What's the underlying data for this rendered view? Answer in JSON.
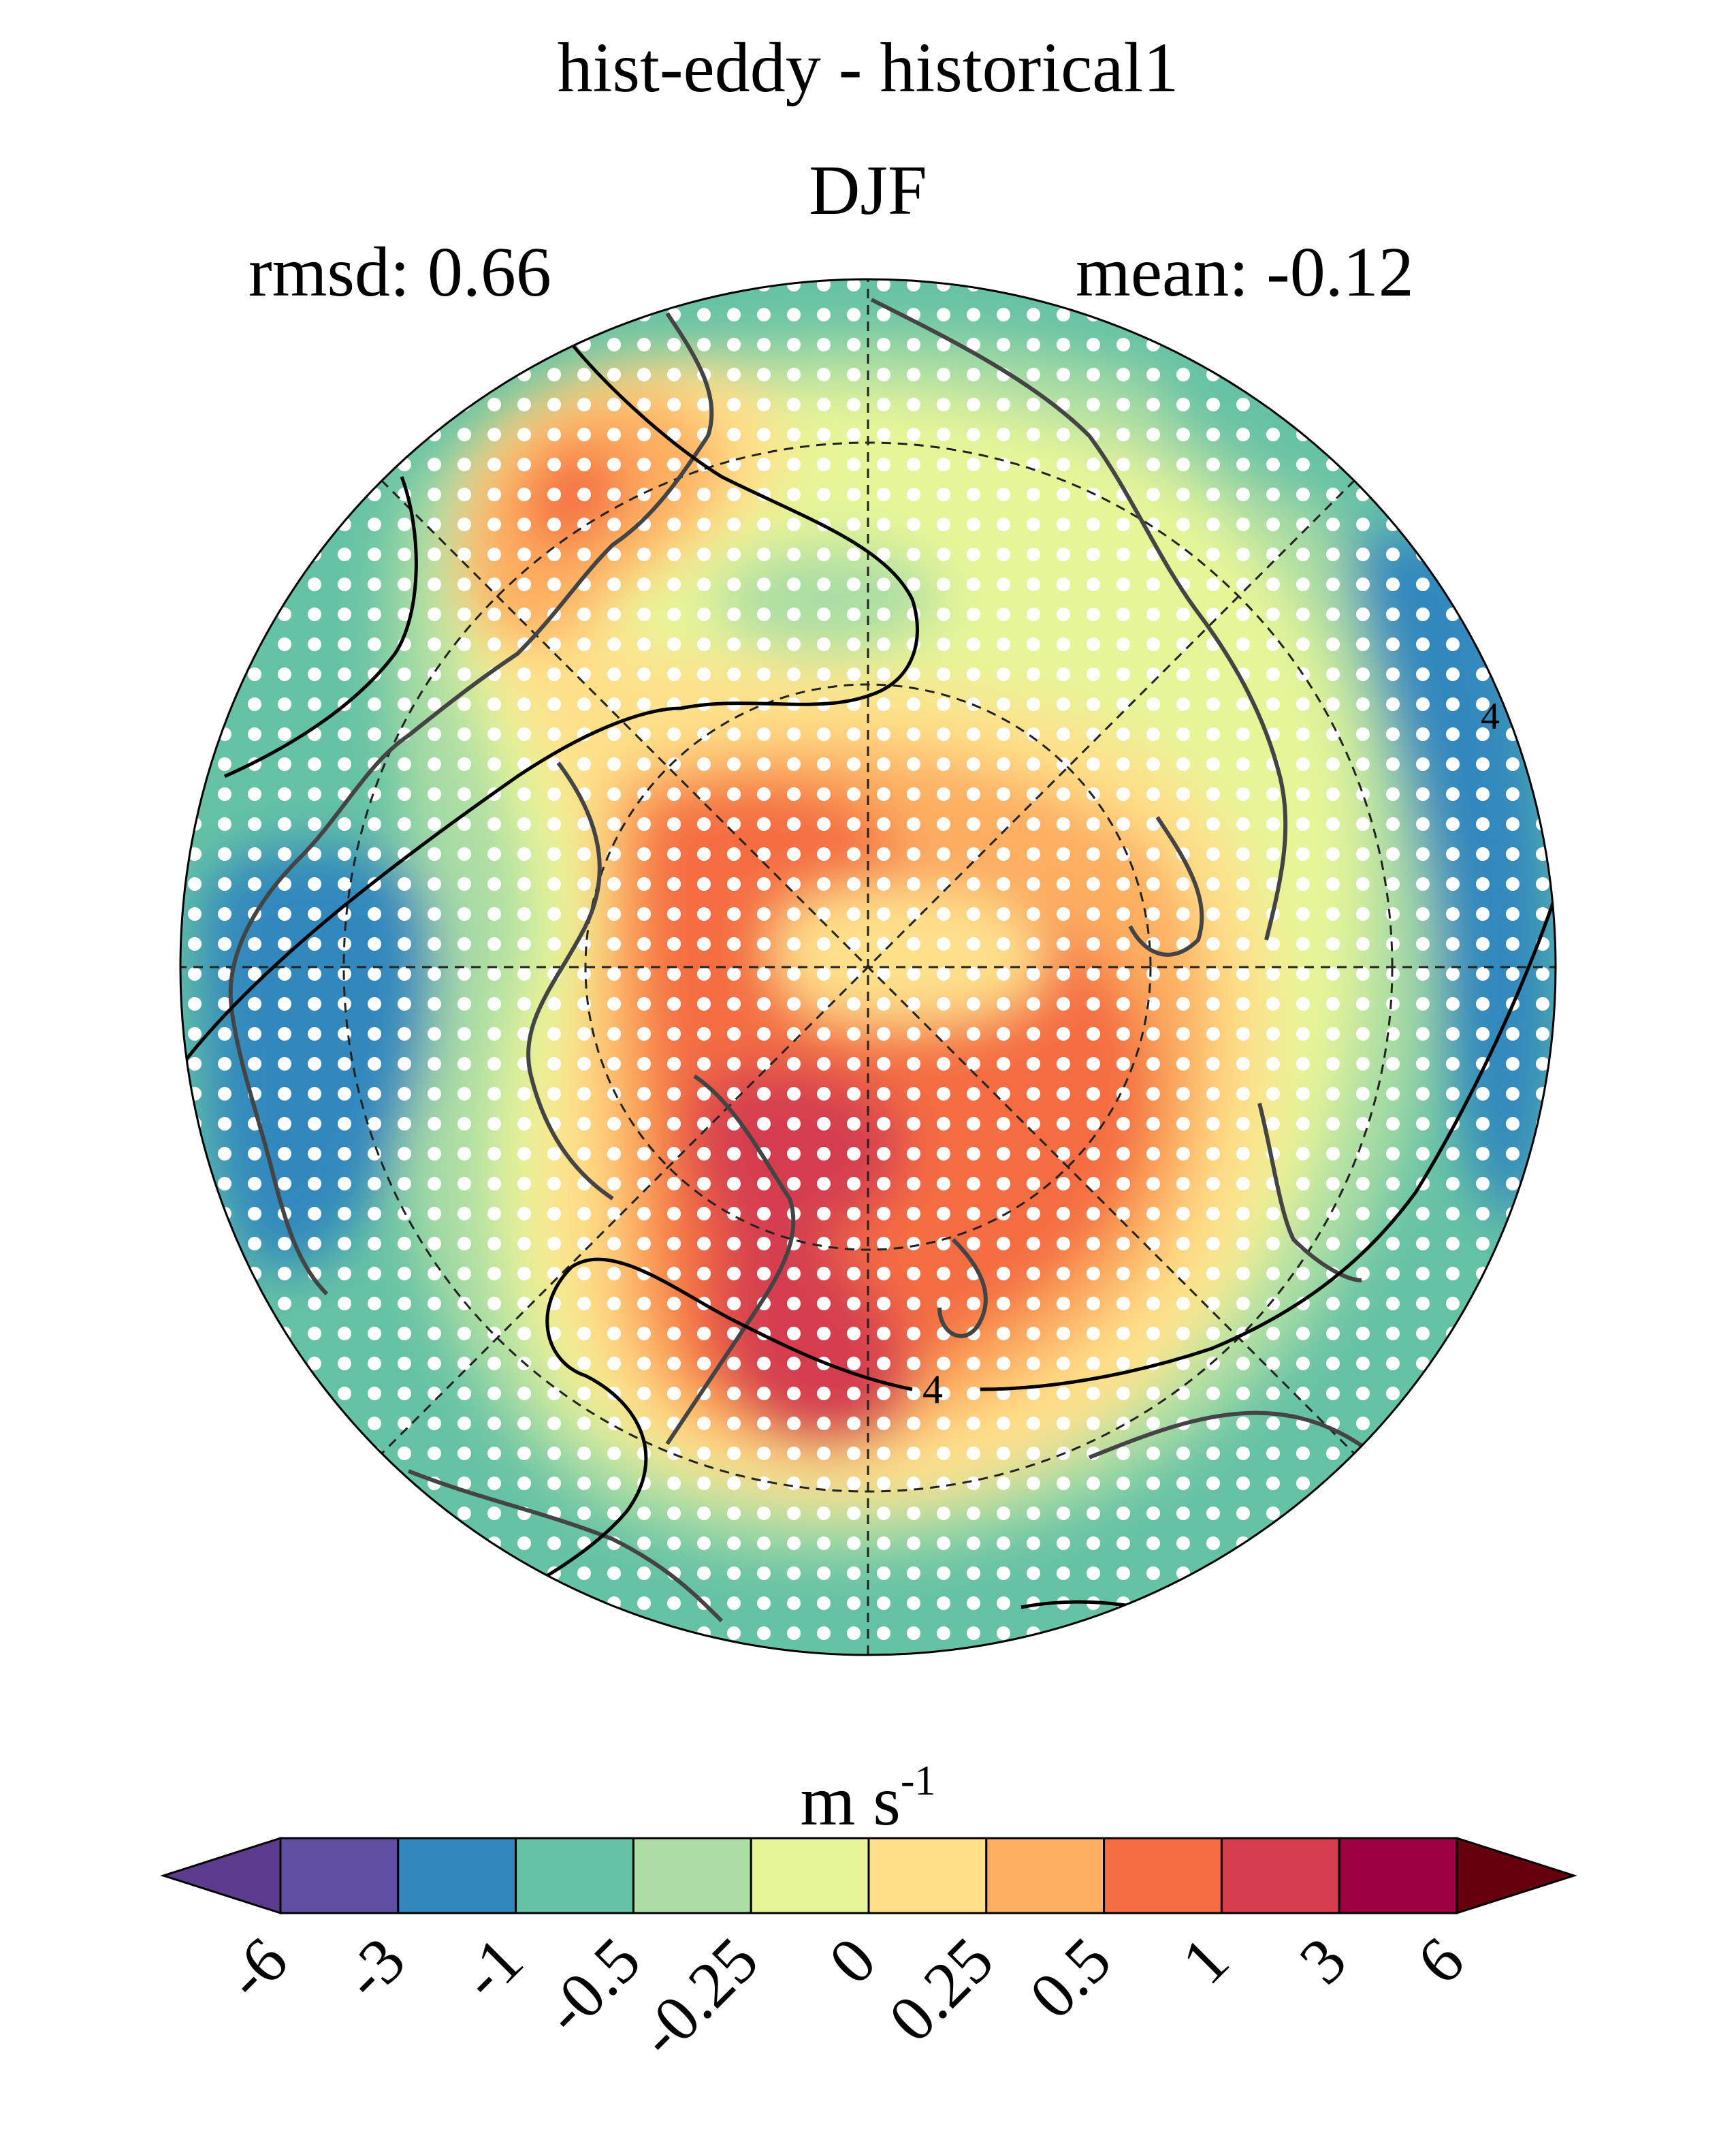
{
  "figure": {
    "title": "hist-eddy - historical1",
    "subtitle": "DJF",
    "rmsd_text": "rmsd: 0.66",
    "mean_text": "mean: -0.12"
  },
  "colorbar": {
    "units": "m s",
    "units_exp": "-1",
    "ticks": [
      "-6",
      "-3",
      "-1",
      "-0.5",
      "-0.25",
      "0",
      "0.25",
      "0.5",
      "1",
      "3",
      "6"
    ],
    "colors": [
      "#5e4fa2",
      "#3288bd",
      "#66c2a5",
      "#abdda4",
      "#e6f598",
      "#fee08b",
      "#fdae61",
      "#f46d43",
      "#d53e4f",
      "#9e0142"
    ],
    "under_color": "#5b3c8c",
    "over_color": "#67000d"
  },
  "map": {
    "projection": "north-polar-stereographic",
    "contour_label": "4",
    "stippling": "white dots"
  }
}
